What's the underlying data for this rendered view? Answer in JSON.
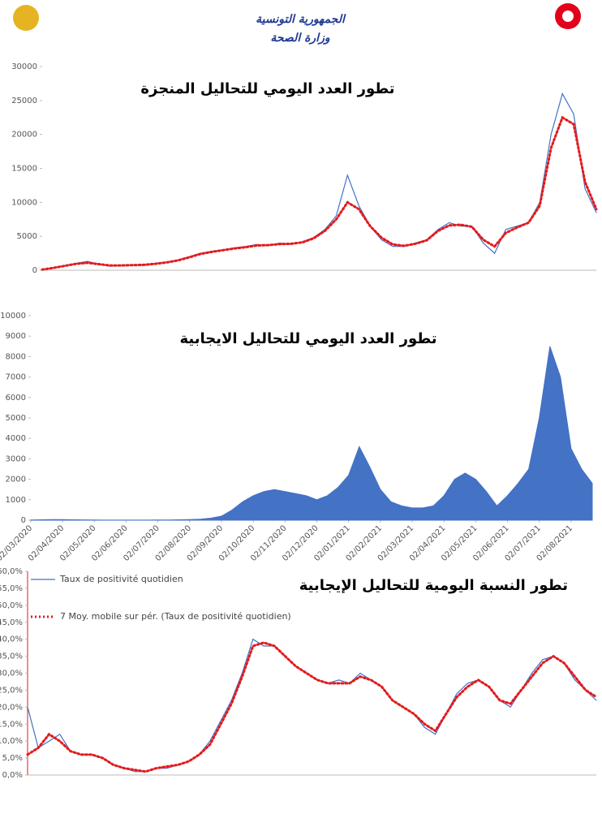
{
  "header": {
    "title": "الجمهورية التونسية",
    "subtitle": "وزارة الصحة"
  },
  "chart_data": [
    {
      "type": "line",
      "title": "تطور العدد اليومي للتحاليل المنجزة",
      "ylim": [
        0,
        30000
      ],
      "yticks": [
        0,
        5000,
        10000,
        15000,
        20000,
        25000,
        30000
      ],
      "grid": false,
      "series": [
        {
          "name": null,
          "color": "#4472c4",
          "style": "solid",
          "values": [
            100,
            400,
            700,
            1000,
            1300,
            900,
            600,
            700,
            800,
            700,
            1000,
            1200,
            1500,
            2000,
            2500,
            2800,
            3000,
            3300,
            3500,
            3800,
            3600,
            4000,
            3800,
            4200,
            4800,
            6000,
            8000,
            14000,
            9500,
            6500,
            4500,
            3500,
            3500,
            4000,
            4500,
            6000,
            7000,
            6500,
            6500,
            4000,
            2500,
            6000,
            6500,
            7000,
            10000,
            20000,
            26000,
            23000,
            12000,
            8500
          ]
        },
        {
          "name": null,
          "color": "#e31a1c",
          "style": "dotted",
          "values": [
            100,
            350,
            650,
            950,
            1100,
            900,
            700,
            700,
            750,
            800,
            950,
            1150,
            1450,
            1900,
            2400,
            2700,
            2950,
            3200,
            3400,
            3650,
            3700,
            3850,
            3900,
            4100,
            4700,
            5800,
            7500,
            10000,
            9000,
            6500,
            4800,
            3800,
            3600,
            3900,
            4400,
            5800,
            6600,
            6700,
            6400,
            4500,
            3500,
            5500,
            6300,
            7000,
            9500,
            18000,
            22500,
            21500,
            13000,
            9000
          ]
        }
      ]
    },
    {
      "type": "area",
      "title": "تطور العدد اليومي للتحاليل الايجابية",
      "ylim": [
        0,
        10000
      ],
      "yticks": [
        0,
        1000,
        2000,
        3000,
        4000,
        5000,
        6000,
        7000,
        8000,
        9000,
        10000
      ],
      "grid": false,
      "categories": [
        "02/03/2020",
        null,
        null,
        "02/04/2020",
        null,
        null,
        "02/05/2020",
        null,
        null,
        "02/06/2020",
        null,
        null,
        "02/07/2020",
        null,
        null,
        "02/08/2020",
        null,
        null,
        "02/09/2020",
        null,
        null,
        "02/10/2020",
        null,
        null,
        "02/11/2020",
        null,
        null,
        "02/12/2020",
        null,
        null,
        "02/01/2021",
        null,
        null,
        "02/02/2021",
        null,
        null,
        "02/03/2021",
        null,
        null,
        "02/04/2021",
        null,
        null,
        "02/05/2021",
        null,
        null,
        "02/06/2021",
        null,
        null,
        "02/07/2021",
        null,
        null,
        "02/08/2021",
        null,
        null
      ],
      "series": [
        {
          "name": null,
          "color": "#4472c4",
          "values": [
            10,
            20,
            30,
            30,
            20,
            15,
            10,
            5,
            5,
            5,
            5,
            5,
            10,
            10,
            20,
            30,
            50,
            100,
            200,
            500,
            900,
            1200,
            1400,
            1500,
            1400,
            1300,
            1200,
            1000,
            1200,
            1600,
            2200,
            3600,
            2600,
            1500,
            900,
            700,
            600,
            600,
            700,
            1200,
            2000,
            2300,
            2000,
            1400,
            700,
            1200,
            1800,
            2500,
            5000,
            8500,
            7000,
            3500,
            2500,
            1800
          ]
        }
      ]
    },
    {
      "type": "line",
      "title": "تطور النسبة اليومية للتحاليل الإيجابية",
      "ylim": [
        0,
        60
      ],
      "grid": false,
      "legend": "upper left",
      "yticks": [
        {
          "value": 0,
          "label": "0,0%"
        },
        {
          "value": 5,
          "label": "5,0%"
        },
        {
          "value": 10,
          "label": "10,0%"
        },
        {
          "value": 15,
          "label": "15,0%"
        },
        {
          "value": 20,
          "label": "20,0%"
        },
        {
          "value": 25,
          "label": "25,0%"
        },
        {
          "value": 30,
          "label": "30,0%"
        },
        {
          "value": 35,
          "label": "35,0%"
        },
        {
          "value": 40,
          "label": "40,0%"
        },
        {
          "value": 45,
          "label": "45,0%"
        },
        {
          "value": 50,
          "label": "50,0%"
        },
        {
          "value": 55,
          "label": "55,0%"
        },
        {
          "value": 60,
          "label": "60,0%"
        }
      ],
      "series": [
        {
          "name": "Taux de positivité quotidien",
          "color": "#4472c4",
          "style": "solid",
          "values": [
            20,
            8,
            10,
            12,
            7,
            6,
            6,
            5,
            3,
            2,
            1,
            1,
            2,
            2,
            3,
            4,
            6,
            10,
            16,
            22,
            30,
            40,
            38,
            38,
            35,
            32,
            30,
            28,
            27,
            28,
            27,
            30,
            28,
            26,
            22,
            20,
            18,
            14,
            12,
            18,
            24,
            27,
            28,
            26,
            22,
            20,
            25,
            30,
            34,
            35,
            33,
            28,
            25,
            22
          ]
        },
        {
          "name": "7 Moy. mobile sur pér. (Taux de positivité quotidien)",
          "color": "#e31a1c",
          "style": "dotted",
          "values": [
            6,
            8,
            12,
            10,
            7,
            6,
            6,
            5,
            3,
            2,
            1.5,
            1,
            2,
            2.5,
            3,
            4,
            6,
            9,
            15,
            21,
            29,
            38,
            39,
            38,
            35,
            32,
            30,
            28,
            27,
            27,
            27,
            29,
            28,
            26,
            22,
            20,
            18,
            15,
            13,
            18,
            23,
            26,
            28,
            26,
            22,
            21,
            25,
            29,
            33,
            35,
            33,
            29,
            25,
            23
          ]
        }
      ]
    }
  ]
}
